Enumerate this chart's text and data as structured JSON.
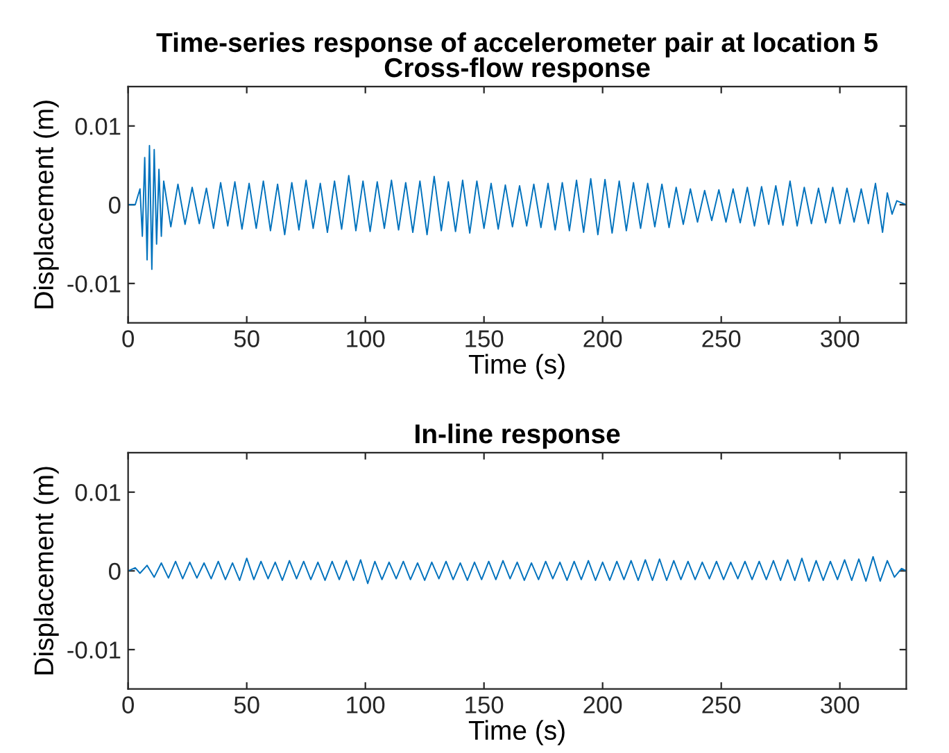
{
  "chart_data": [
    {
      "type": "line",
      "title": "Time-series response of accelerometer pair at location 5\nCross-flow response",
      "xlabel": "Time (s)",
      "ylabel": "Displacement (m)",
      "xlim": [
        0,
        328
      ],
      "ylim": [
        -0.015,
        0.015
      ],
      "xticks": [
        0,
        50,
        100,
        150,
        200,
        250,
        300
      ],
      "yticks": [
        -0.01,
        0,
        0.01
      ],
      "grid": false,
      "legend": false,
      "series": [
        {
          "color": "#0072bd",
          "x": [
            0,
            3,
            5,
            6,
            7,
            8,
            9,
            10,
            11,
            12,
            13,
            14,
            15,
            18,
            21,
            24,
            27,
            30,
            33,
            36,
            39,
            42,
            45,
            48,
            51,
            54,
            57,
            60,
            63,
            66,
            69,
            72,
            75,
            78,
            81,
            84,
            87,
            90,
            93,
            96,
            99,
            102,
            105,
            108,
            111,
            114,
            117,
            120,
            123,
            126,
            129,
            132,
            135,
            138,
            141,
            144,
            147,
            150,
            153,
            156,
            159,
            162,
            165,
            168,
            171,
            174,
            177,
            180,
            183,
            186,
            189,
            192,
            195,
            198,
            201,
            204,
            207,
            210,
            213,
            216,
            219,
            222,
            225,
            228,
            231,
            234,
            237,
            240,
            243,
            246,
            249,
            252,
            255,
            258,
            261,
            264,
            267,
            270,
            273,
            276,
            279,
            282,
            285,
            288,
            291,
            294,
            297,
            300,
            303,
            306,
            309,
            312,
            315,
            318,
            320,
            322,
            324,
            328
          ],
          "values": [
            0,
            0,
            0.002,
            -0.004,
            0.006,
            -0.007,
            0.0075,
            -0.0082,
            0.007,
            -0.005,
            0.0045,
            -0.004,
            0.003,
            -0.0028,
            0.0026,
            -0.0025,
            0.0022,
            -0.0024,
            0.0021,
            -0.003,
            0.0028,
            -0.0027,
            0.0029,
            -0.0031,
            0.0027,
            -0.003,
            0.003,
            -0.0033,
            0.0026,
            -0.0038,
            0.0028,
            -0.0032,
            0.0031,
            -0.003,
            0.0027,
            -0.0035,
            0.003,
            -0.0031,
            0.0037,
            -0.0033,
            0.003,
            -0.0034,
            0.0029,
            -0.003,
            0.0031,
            -0.0032,
            0.0028,
            -0.0035,
            0.003,
            -0.0038,
            0.0036,
            -0.0033,
            0.0029,
            -0.0034,
            0.0031,
            -0.0036,
            0.003,
            -0.003,
            0.0027,
            -0.0031,
            0.0025,
            -0.0028,
            0.0024,
            -0.0027,
            0.0026,
            -0.0029,
            0.0027,
            -0.0032,
            0.0028,
            -0.0033,
            0.0031,
            -0.0035,
            0.0033,
            -0.0038,
            0.0032,
            -0.0036,
            0.003,
            -0.0033,
            0.0028,
            -0.003,
            0.0027,
            -0.0028,
            0.0026,
            -0.0029,
            0.0022,
            -0.0025,
            0.002,
            -0.0022,
            0.0018,
            -0.002,
            0.0019,
            -0.0022,
            0.002,
            -0.0023,
            0.0022,
            -0.0027,
            0.0023,
            -0.0025,
            0.0024,
            -0.0026,
            0.003,
            -0.0027,
            0.0022,
            -0.0024,
            0.0021,
            -0.0023,
            0.0022,
            -0.0024,
            0.0021,
            -0.0022,
            0.002,
            -0.0024,
            0.0027,
            -0.0035,
            0.0015,
            -0.0012,
            0.0005,
            0
          ]
        }
      ]
    },
    {
      "type": "line",
      "title": "In-line response",
      "xlabel": "Time (s)",
      "ylabel": "Displacement (m)",
      "xlim": [
        0,
        328
      ],
      "ylim": [
        -0.015,
        0.015
      ],
      "xticks": [
        0,
        50,
        100,
        150,
        200,
        250,
        300
      ],
      "yticks": [
        -0.01,
        0,
        0.01
      ],
      "grid": false,
      "legend": false,
      "series": [
        {
          "color": "#0072bd",
          "x": [
            0,
            3,
            5,
            8,
            11,
            14,
            17,
            20,
            23,
            26,
            29,
            32,
            35,
            38,
            41,
            44,
            47,
            50,
            53,
            56,
            59,
            62,
            65,
            68,
            71,
            74,
            77,
            80,
            83,
            86,
            89,
            92,
            95,
            98,
            101,
            104,
            107,
            110,
            113,
            116,
            119,
            122,
            125,
            128,
            131,
            134,
            137,
            140,
            143,
            146,
            149,
            152,
            155,
            158,
            161,
            164,
            167,
            170,
            173,
            176,
            179,
            182,
            185,
            188,
            191,
            194,
            197,
            200,
            203,
            206,
            209,
            212,
            215,
            218,
            221,
            224,
            227,
            230,
            233,
            236,
            239,
            242,
            245,
            248,
            251,
            254,
            257,
            260,
            263,
            266,
            269,
            272,
            275,
            278,
            281,
            284,
            287,
            290,
            293,
            296,
            299,
            302,
            305,
            308,
            311,
            314,
            317,
            320,
            323,
            326,
            328
          ],
          "values": [
            0,
            0.0004,
            -0.0003,
            0.0007,
            -0.0008,
            0.001,
            -0.0009,
            0.0012,
            -0.001,
            0.0011,
            -0.0009,
            0.001,
            -0.001,
            0.0012,
            -0.0011,
            0.001,
            -0.0012,
            0.0016,
            -0.0011,
            0.0012,
            -0.001,
            0.0011,
            -0.0012,
            0.0013,
            -0.001,
            0.0012,
            -0.0011,
            0.0011,
            -0.0012,
            0.0012,
            -0.0011,
            0.0013,
            -0.0012,
            0.0014,
            -0.0016,
            0.0012,
            -0.0011,
            0.0011,
            -0.001,
            0.0012,
            -0.0011,
            0.001,
            -0.0012,
            0.0011,
            -0.001,
            0.0012,
            -0.0011,
            0.001,
            -0.0012,
            0.0011,
            -0.0011,
            0.0012,
            -0.0011,
            0.0013,
            -0.001,
            0.0011,
            -0.0012,
            0.001,
            -0.0011,
            0.0012,
            -0.001,
            0.0011,
            -0.0012,
            0.0012,
            -0.0011,
            0.0013,
            -0.0012,
            0.0011,
            -0.0012,
            0.0012,
            -0.0011,
            0.0013,
            -0.0012,
            0.0014,
            -0.0012,
            0.0015,
            -0.0012,
            0.0013,
            -0.0011,
            0.0012,
            -0.0011,
            0.0011,
            -0.001,
            0.0012,
            -0.0011,
            0.0011,
            -0.001,
            0.0012,
            -0.0011,
            0.0012,
            -0.0011,
            0.0013,
            -0.0012,
            0.0014,
            -0.0012,
            0.0016,
            -0.0013,
            0.0013,
            -0.0012,
            0.0012,
            -0.0011,
            0.0014,
            -0.0012,
            0.0015,
            -0.0013,
            0.0018,
            -0.0013,
            0.0013,
            -0.0008,
            0.0003,
            0
          ]
        }
      ]
    }
  ]
}
